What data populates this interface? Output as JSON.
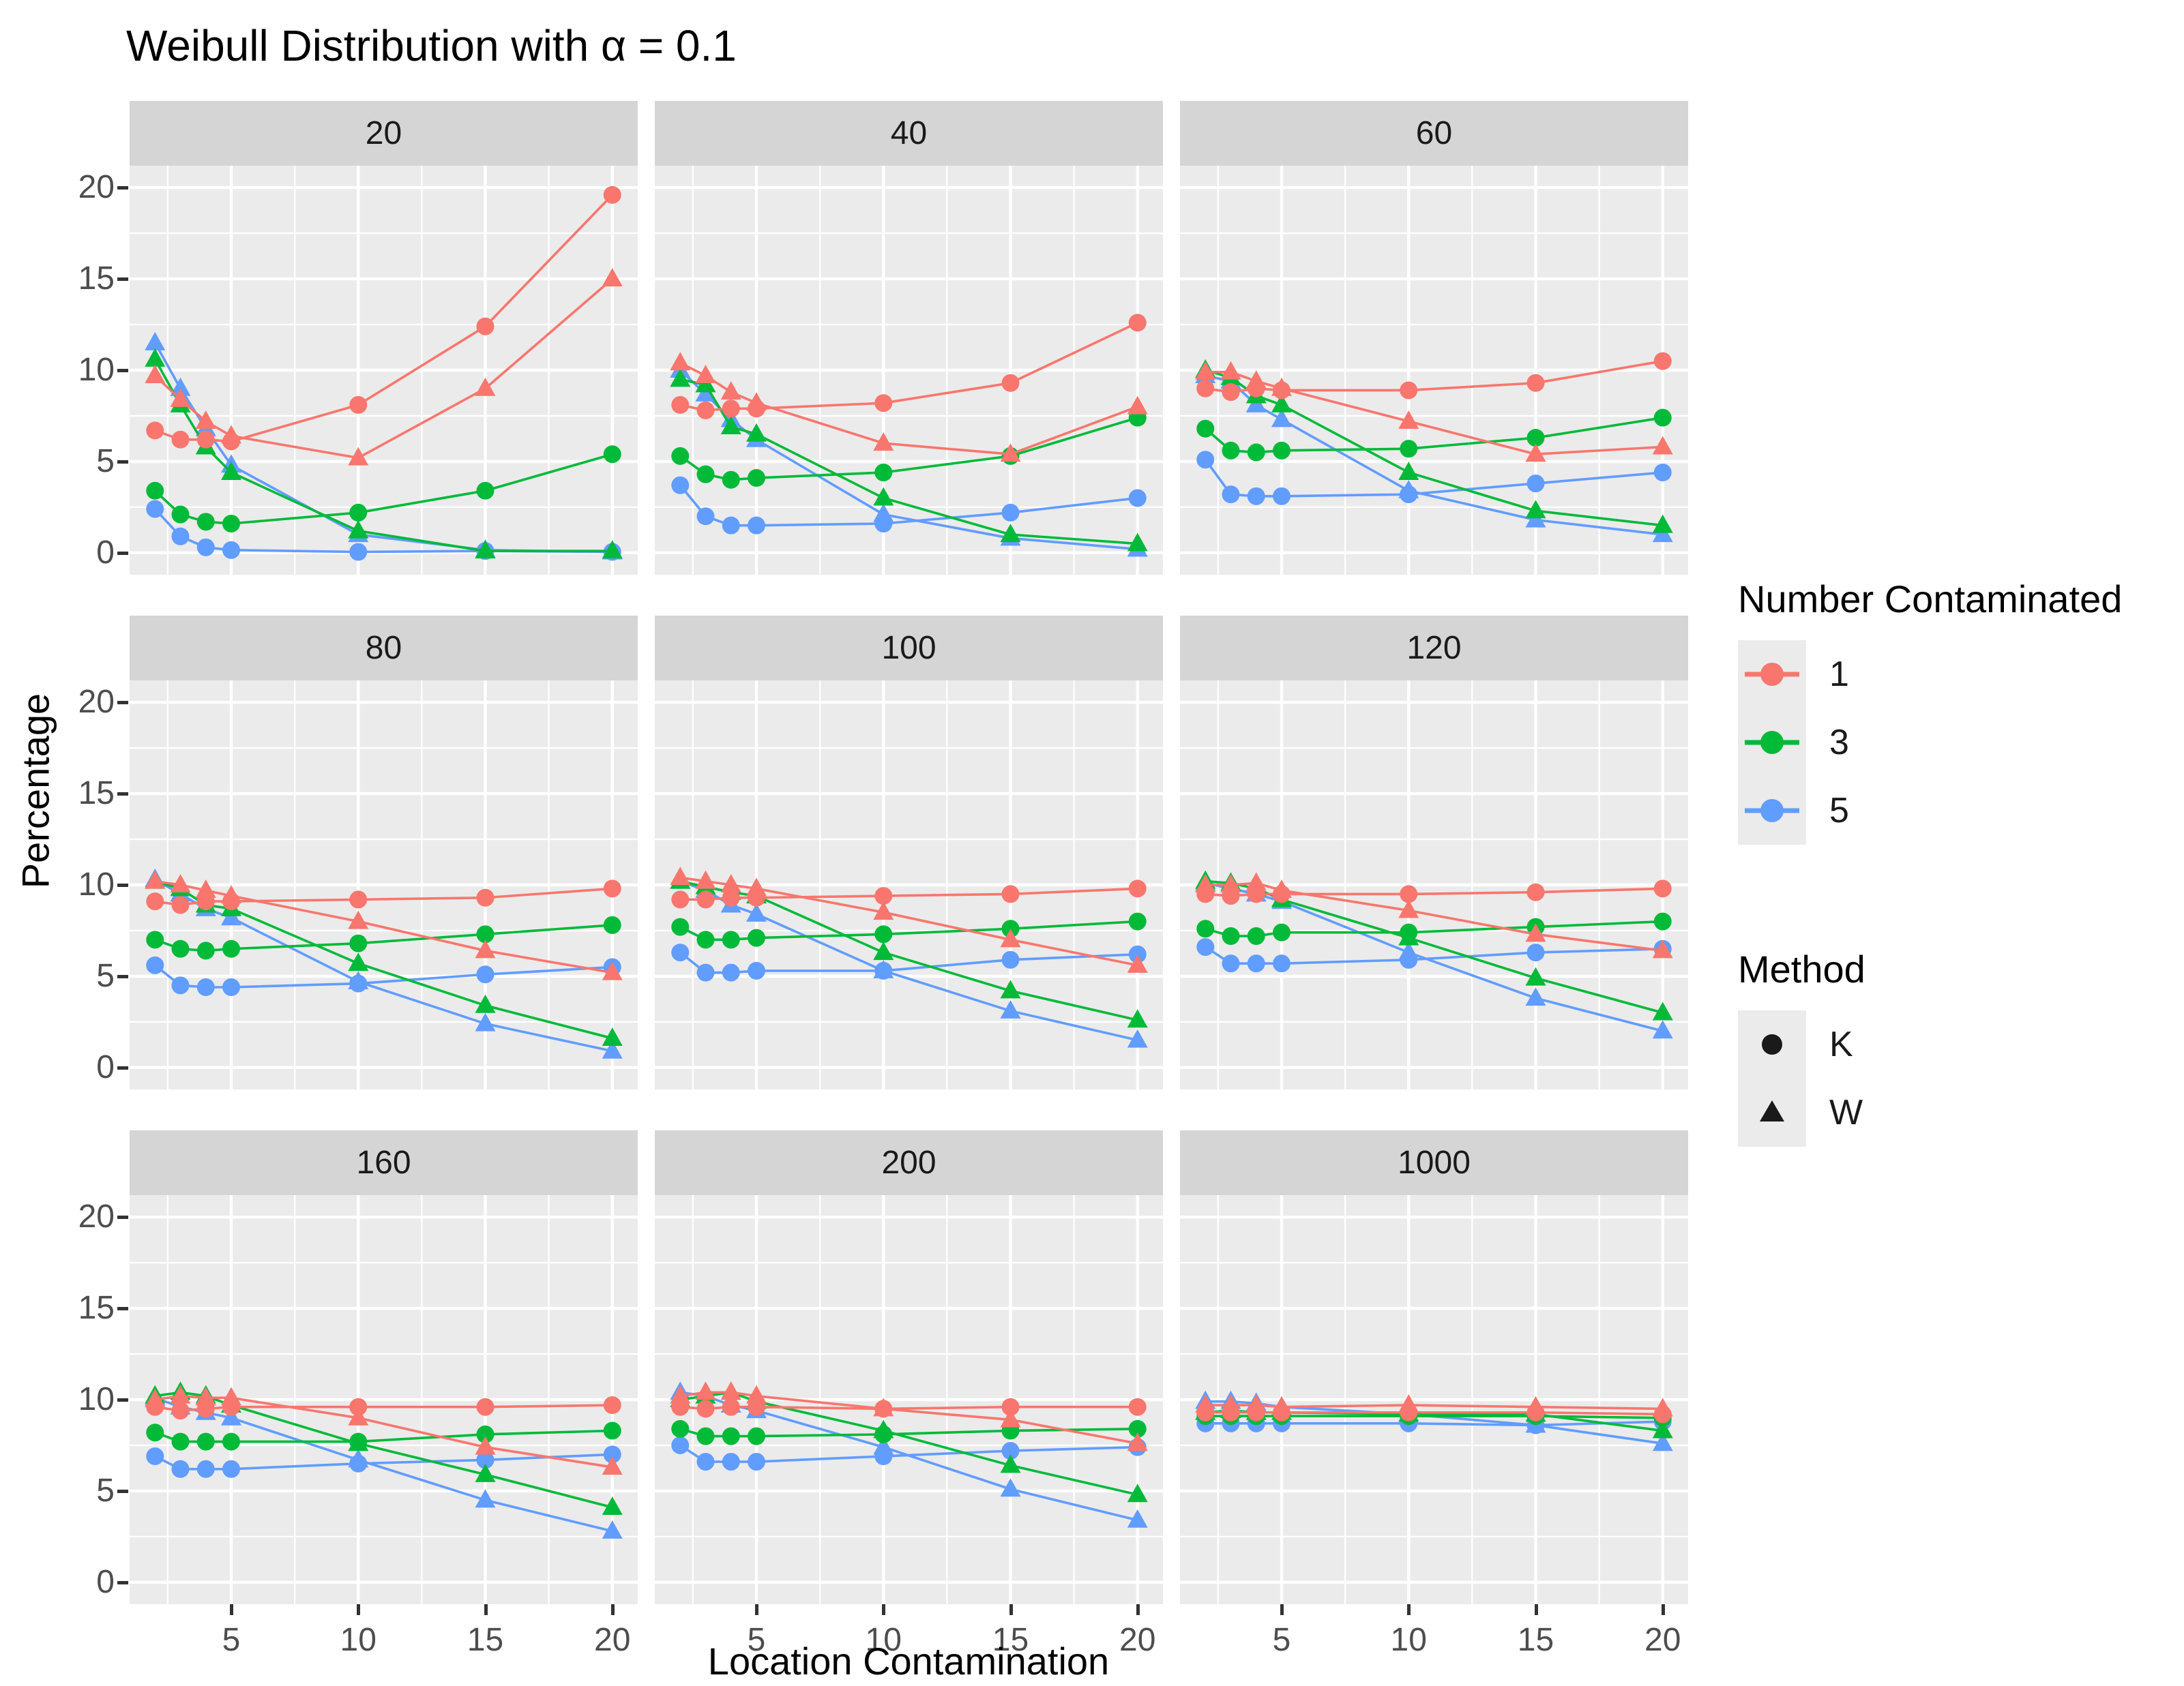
{
  "title": "Weibull Distribution with α = 0.1",
  "axes": {
    "x_title": "Location Contamination",
    "y_title": "Percentage",
    "x_ticks": [
      5,
      10,
      15,
      20
    ],
    "y_ticks": [
      0,
      5,
      10,
      15,
      20
    ],
    "x_minor_ticks": [
      2.5,
      7.5,
      12.5,
      17.5
    ],
    "y_minor_ticks": [
      2.5,
      7.5,
      12.5,
      17.5
    ],
    "x_domain": [
      1,
      21
    ],
    "y_domain": [
      -1.2,
      21.2
    ]
  },
  "colors": {
    "series_1": "#F8766D",
    "series_3": "#00BA38",
    "series_5": "#619CFF",
    "panel_background": "#EBEBEB",
    "strip_background": "#D5D5D5",
    "gridline": "#FFFFFF",
    "tick_text": "#4D4D4D",
    "legend_key_background": "#EBEBEB",
    "method_marker": "#1A1A1A"
  },
  "legend": {
    "color": {
      "title": "Number Contaminated",
      "items": [
        {
          "label": "1",
          "color": "#F8766D",
          "marker": "circle-on-line"
        },
        {
          "label": "3",
          "color": "#00BA38",
          "marker": "circle-on-line"
        },
        {
          "label": "5",
          "color": "#619CFF",
          "marker": "circle-on-line"
        }
      ]
    },
    "shape": {
      "title": "Method",
      "items": [
        {
          "label": "K",
          "shape": "circle"
        },
        {
          "label": "W",
          "shape": "triangle"
        }
      ]
    }
  },
  "chart_data": {
    "type": "line",
    "title": "Weibull Distribution with α = 0.1",
    "xlabel": "Location Contamination",
    "ylabel": "Percentage",
    "ylim": [
      0,
      20
    ],
    "grid": "on",
    "legend_position": "right",
    "x": [
      2,
      3,
      4,
      5,
      10,
      15,
      20
    ],
    "facet_labels": [
      "20",
      "40",
      "60",
      "80",
      "100",
      "120",
      "160",
      "200",
      "1000"
    ],
    "facets": [
      {
        "label": "20",
        "series": [
          {
            "number": "5",
            "method": "W",
            "marker": "triangle",
            "color": "#619CFF",
            "values": [
              11.5,
              9.0,
              6.8,
              4.8,
              1.0,
              0.15,
              0.05
            ]
          },
          {
            "number": "5",
            "method": "K",
            "marker": "circle",
            "color": "#619CFF",
            "values": [
              2.4,
              0.9,
              0.3,
              0.15,
              0.05,
              0.1,
              0.05
            ]
          },
          {
            "number": "3",
            "method": "W",
            "marker": "triangle",
            "color": "#00BA38",
            "values": [
              10.6,
              8.1,
              5.8,
              4.4,
              1.2,
              0.1,
              0.1
            ]
          },
          {
            "number": "3",
            "method": "K",
            "marker": "circle",
            "color": "#00BA38",
            "values": [
              3.4,
              2.1,
              1.7,
              1.6,
              2.2,
              3.4,
              5.4
            ]
          },
          {
            "number": "1",
            "method": "W",
            "marker": "triangle",
            "color": "#F8766D",
            "values": [
              9.7,
              8.4,
              7.2,
              6.4,
              5.2,
              9.0,
              15.0
            ]
          },
          {
            "number": "1",
            "method": "K",
            "marker": "circle",
            "color": "#F8766D",
            "values": [
              6.7,
              6.2,
              6.2,
              6.1,
              8.1,
              12.4,
              19.6
            ]
          }
        ]
      },
      {
        "label": "40",
        "series": [
          {
            "number": "5",
            "method": "W",
            "marker": "triangle",
            "color": "#619CFF",
            "values": [
              10.0,
              8.7,
              7.3,
              6.2,
              2.1,
              0.8,
              0.2
            ]
          },
          {
            "number": "5",
            "method": "K",
            "marker": "circle",
            "color": "#619CFF",
            "values": [
              3.7,
              2.0,
              1.5,
              1.5,
              1.6,
              2.2,
              3.0
            ]
          },
          {
            "number": "3",
            "method": "W",
            "marker": "triangle",
            "color": "#00BA38",
            "values": [
              9.5,
              9.2,
              6.9,
              6.5,
              3.0,
              1.0,
              0.5
            ]
          },
          {
            "number": "3",
            "method": "K",
            "marker": "circle",
            "color": "#00BA38",
            "values": [
              5.3,
              4.3,
              4.0,
              4.1,
              4.4,
              5.3,
              7.4
            ]
          },
          {
            "number": "1",
            "method": "W",
            "marker": "triangle",
            "color": "#F8766D",
            "values": [
              10.4,
              9.7,
              8.8,
              8.2,
              6.0,
              5.4,
              8.0
            ]
          },
          {
            "number": "1",
            "method": "K",
            "marker": "circle",
            "color": "#F8766D",
            "values": [
              8.1,
              7.8,
              7.9,
              7.9,
              8.2,
              9.3,
              12.6
            ]
          }
        ]
      },
      {
        "label": "60",
        "series": [
          {
            "number": "5",
            "method": "W",
            "marker": "triangle",
            "color": "#619CFF",
            "values": [
              9.7,
              9.4,
              8.1,
              7.3,
              3.4,
              1.8,
              1.0
            ]
          },
          {
            "number": "5",
            "method": "K",
            "marker": "circle",
            "color": "#619CFF",
            "values": [
              5.1,
              3.2,
              3.1,
              3.1,
              3.2,
              3.8,
              4.4
            ]
          },
          {
            "number": "3",
            "method": "W",
            "marker": "triangle",
            "color": "#00BA38",
            "values": [
              10.0,
              9.6,
              8.6,
              8.1,
              4.4,
              2.3,
              1.5
            ]
          },
          {
            "number": "3",
            "method": "K",
            "marker": "circle",
            "color": "#00BA38",
            "values": [
              6.8,
              5.6,
              5.5,
              5.6,
              5.7,
              6.3,
              7.4
            ]
          },
          {
            "number": "1",
            "method": "W",
            "marker": "triangle",
            "color": "#F8766D",
            "values": [
              9.9,
              9.9,
              9.4,
              9.0,
              7.2,
              5.4,
              5.8
            ]
          },
          {
            "number": "1",
            "method": "K",
            "marker": "circle",
            "color": "#F8766D",
            "values": [
              9.0,
              8.8,
              9.0,
              8.9,
              8.9,
              9.3,
              10.5
            ]
          }
        ]
      },
      {
        "label": "80",
        "series": [
          {
            "number": "5",
            "method": "W",
            "marker": "triangle",
            "color": "#619CFF",
            "values": [
              10.3,
              9.5,
              8.7,
              8.2,
              4.7,
              2.4,
              0.9
            ]
          },
          {
            "number": "5",
            "method": "K",
            "marker": "circle",
            "color": "#619CFF",
            "values": [
              5.6,
              4.5,
              4.4,
              4.4,
              4.6,
              5.1,
              5.5
            ]
          },
          {
            "number": "3",
            "method": "W",
            "marker": "triangle",
            "color": "#00BA38",
            "values": [
              10.2,
              9.8,
              8.9,
              8.7,
              5.7,
              3.4,
              1.6
            ]
          },
          {
            "number": "3",
            "method": "K",
            "marker": "circle",
            "color": "#00BA38",
            "values": [
              7.0,
              6.5,
              6.4,
              6.5,
              6.8,
              7.3,
              7.8
            ]
          },
          {
            "number": "1",
            "method": "W",
            "marker": "triangle",
            "color": "#F8766D",
            "values": [
              10.2,
              10.0,
              9.7,
              9.4,
              8.0,
              6.4,
              5.2
            ]
          },
          {
            "number": "1",
            "method": "K",
            "marker": "circle",
            "color": "#F8766D",
            "values": [
              9.1,
              8.9,
              9.1,
              9.1,
              9.2,
              9.3,
              9.8
            ]
          }
        ]
      },
      {
        "label": "100",
        "series": [
          {
            "number": "5",
            "method": "W",
            "marker": "triangle",
            "color": "#619CFF",
            "values": [
              10.2,
              9.7,
              8.9,
              8.4,
              5.3,
              3.1,
              1.5
            ]
          },
          {
            "number": "5",
            "method": "K",
            "marker": "circle",
            "color": "#619CFF",
            "values": [
              6.3,
              5.2,
              5.2,
              5.3,
              5.3,
              5.9,
              6.2
            ]
          },
          {
            "number": "3",
            "method": "W",
            "marker": "triangle",
            "color": "#00BA38",
            "values": [
              10.2,
              9.9,
              9.6,
              9.4,
              6.3,
              4.2,
              2.6
            ]
          },
          {
            "number": "3",
            "method": "K",
            "marker": "circle",
            "color": "#00BA38",
            "values": [
              7.7,
              7.0,
              7.0,
              7.1,
              7.3,
              7.6,
              8.0
            ]
          },
          {
            "number": "1",
            "method": "W",
            "marker": "triangle",
            "color": "#F8766D",
            "values": [
              10.4,
              10.2,
              10.0,
              9.8,
              8.5,
              7.0,
              5.6
            ]
          },
          {
            "number": "1",
            "method": "K",
            "marker": "circle",
            "color": "#F8766D",
            "values": [
              9.2,
              9.2,
              9.3,
              9.3,
              9.4,
              9.5,
              9.8
            ]
          }
        ]
      },
      {
        "label": "120",
        "series": [
          {
            "number": "5",
            "method": "W",
            "marker": "triangle",
            "color": "#619CFF",
            "values": [
              10.1,
              9.8,
              9.5,
              9.1,
              6.3,
              3.8,
              2.0
            ]
          },
          {
            "number": "5",
            "method": "K",
            "marker": "circle",
            "color": "#619CFF",
            "values": [
              6.6,
              5.7,
              5.7,
              5.7,
              5.9,
              6.3,
              6.5
            ]
          },
          {
            "number": "3",
            "method": "W",
            "marker": "triangle",
            "color": "#00BA38",
            "values": [
              10.2,
              10.1,
              9.8,
              9.2,
              7.1,
              4.9,
              3.0
            ]
          },
          {
            "number": "3",
            "method": "K",
            "marker": "circle",
            "color": "#00BA38",
            "values": [
              7.6,
              7.2,
              7.2,
              7.4,
              7.4,
              7.7,
              8.0
            ]
          },
          {
            "number": "1",
            "method": "W",
            "marker": "triangle",
            "color": "#F8766D",
            "values": [
              10.0,
              10.0,
              10.1,
              9.7,
              8.6,
              7.3,
              6.4
            ]
          },
          {
            "number": "1",
            "method": "K",
            "marker": "circle",
            "color": "#F8766D",
            "values": [
              9.5,
              9.4,
              9.5,
              9.5,
              9.5,
              9.6,
              9.8
            ]
          }
        ]
      },
      {
        "label": "160",
        "series": [
          {
            "number": "5",
            "method": "W",
            "marker": "triangle",
            "color": "#619CFF",
            "values": [
              10.1,
              9.6,
              9.3,
              9.0,
              6.7,
              4.5,
              2.8
            ]
          },
          {
            "number": "5",
            "method": "K",
            "marker": "circle",
            "color": "#619CFF",
            "values": [
              6.9,
              6.2,
              6.2,
              6.2,
              6.5,
              6.7,
              7.0
            ]
          },
          {
            "number": "3",
            "method": "W",
            "marker": "triangle",
            "color": "#00BA38",
            "values": [
              10.2,
              10.4,
              10.2,
              9.7,
              7.6,
              5.9,
              4.1
            ]
          },
          {
            "number": "3",
            "method": "K",
            "marker": "circle",
            "color": "#00BA38",
            "values": [
              8.2,
              7.7,
              7.7,
              7.7,
              7.7,
              8.1,
              8.3
            ]
          },
          {
            "number": "1",
            "method": "W",
            "marker": "triangle",
            "color": "#F8766D",
            "values": [
              10.0,
              10.2,
              10.1,
              10.1,
              9.0,
              7.4,
              6.3
            ]
          },
          {
            "number": "1",
            "method": "K",
            "marker": "circle",
            "color": "#F8766D",
            "values": [
              9.6,
              9.4,
              9.5,
              9.6,
              9.6,
              9.6,
              9.7
            ]
          }
        ]
      },
      {
        "label": "200",
        "series": [
          {
            "number": "5",
            "method": "W",
            "marker": "triangle",
            "color": "#619CFF",
            "values": [
              10.4,
              10.2,
              9.7,
              9.4,
              7.4,
              5.1,
              3.4
            ]
          },
          {
            "number": "5",
            "method": "K",
            "marker": "circle",
            "color": "#619CFF",
            "values": [
              7.5,
              6.6,
              6.6,
              6.6,
              6.9,
              7.2,
              7.4
            ]
          },
          {
            "number": "3",
            "method": "W",
            "marker": "triangle",
            "color": "#00BA38",
            "values": [
              10.0,
              10.2,
              10.4,
              9.9,
              8.3,
              6.4,
              4.8
            ]
          },
          {
            "number": "3",
            "method": "K",
            "marker": "circle",
            "color": "#00BA38",
            "values": [
              8.4,
              8.0,
              8.0,
              8.0,
              8.1,
              8.3,
              8.4
            ]
          },
          {
            "number": "1",
            "method": "W",
            "marker": "triangle",
            "color": "#F8766D",
            "values": [
              10.2,
              10.4,
              10.4,
              10.2,
              9.5,
              8.9,
              7.6
            ]
          },
          {
            "number": "1",
            "method": "K",
            "marker": "circle",
            "color": "#F8766D",
            "values": [
              9.6,
              9.5,
              9.6,
              9.6,
              9.5,
              9.6,
              9.6
            ]
          }
        ]
      },
      {
        "label": "1000",
        "series": [
          {
            "number": "5",
            "method": "W",
            "marker": "triangle",
            "color": "#619CFF",
            "values": [
              9.9,
              9.9,
              9.8,
              9.6,
              9.2,
              8.6,
              7.6
            ]
          },
          {
            "number": "5",
            "method": "K",
            "marker": "circle",
            "color": "#619CFF",
            "values": [
              8.7,
              8.7,
              8.7,
              8.7,
              8.7,
              8.6,
              8.8
            ]
          },
          {
            "number": "3",
            "method": "W",
            "marker": "triangle",
            "color": "#00BA38",
            "values": [
              9.3,
              9.4,
              9.3,
              9.3,
              9.2,
              9.2,
              8.3
            ]
          },
          {
            "number": "3",
            "method": "K",
            "marker": "circle",
            "color": "#00BA38",
            "values": [
              9.1,
              9.1,
              9.1,
              9.1,
              9.1,
              9.1,
              9.0
            ]
          },
          {
            "number": "1",
            "method": "W",
            "marker": "triangle",
            "color": "#F8766D",
            "values": [
              9.7,
              9.7,
              9.7,
              9.6,
              9.7,
              9.6,
              9.5
            ]
          },
          {
            "number": "1",
            "method": "K",
            "marker": "circle",
            "color": "#F8766D",
            "values": [
              9.3,
              9.3,
              9.3,
              9.3,
              9.3,
              9.3,
              9.2
            ]
          }
        ]
      }
    ]
  }
}
